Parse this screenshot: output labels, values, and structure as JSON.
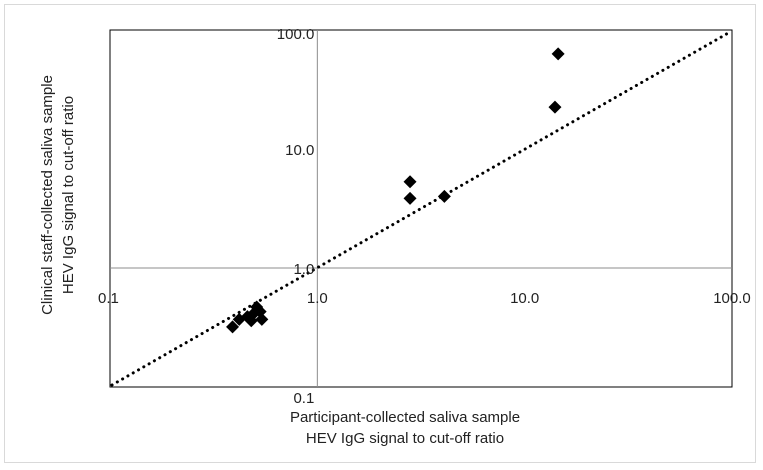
{
  "chart_data": {
    "type": "scatter",
    "xscale": "log",
    "yscale": "log",
    "xlim": [
      0.1,
      100
    ],
    "ylim": [
      0.1,
      100
    ],
    "xticks": [
      "0.1",
      "1.0",
      "10.0",
      "100.0"
    ],
    "yticks": [
      "0.1",
      "1.0",
      "10.0",
      "100.0"
    ],
    "xlabel_line1": "Participant-collected saliva sample",
    "xlabel_line2": "HEV IgG signal to cut-off ratio",
    "ylabel_line1": "Clinical staff-collected saliva sample",
    "ylabel_line2": "HEV IgG signal to cut-off ratio",
    "grid": "x=1 and y=1 reference lines only",
    "identity_line": "dotted diagonal y = x",
    "marker": "diamond",
    "marker_color": "#000000",
    "points": [
      {
        "x": 0.39,
        "y": 0.32
      },
      {
        "x": 0.42,
        "y": 0.37
      },
      {
        "x": 0.46,
        "y": 0.39
      },
      {
        "x": 0.48,
        "y": 0.36
      },
      {
        "x": 0.49,
        "y": 0.41
      },
      {
        "x": 0.51,
        "y": 0.47
      },
      {
        "x": 0.53,
        "y": 0.43
      },
      {
        "x": 0.54,
        "y": 0.37
      },
      {
        "x": 2.8,
        "y": 5.3
      },
      {
        "x": 2.8,
        "y": 3.85
      },
      {
        "x": 4.1,
        "y": 4.0
      },
      {
        "x": 14.0,
        "y": 22.5
      },
      {
        "x": 14.5,
        "y": 63.0
      }
    ]
  }
}
